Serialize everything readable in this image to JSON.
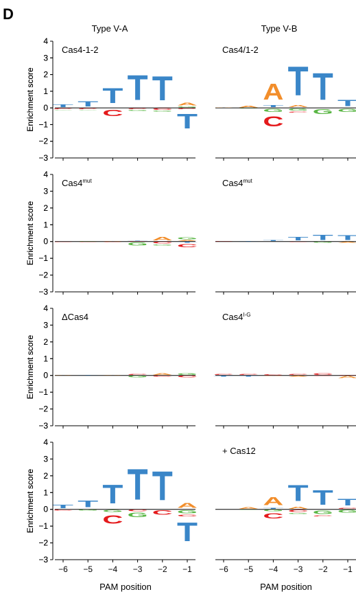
{
  "figure": {
    "panel_letter": "D",
    "column_titles": [
      "Type V-A",
      "Type V-B"
    ],
    "ylabel": "Enrichment score",
    "xlabel": "PAM position",
    "x_ticks": [
      "−6",
      "−5",
      "−4",
      "−3",
      "−2",
      "−1"
    ],
    "y_ticks": [
      "4",
      "3",
      "2",
      "1",
      "0",
      "−1",
      "−2",
      "−3"
    ]
  },
  "colors": {
    "A": "#f28e2b",
    "C": "#e41a1c",
    "G": "#5ab645",
    "T": "#3a86c8"
  },
  "chart_data": [
    {
      "type": "sequence-logo",
      "column": "Type V-A",
      "label": "Cas4-1-2",
      "label_sup": "",
      "ylim": [
        -3,
        4
      ],
      "positions": [
        -6,
        -5,
        -4,
        -3,
        -2,
        -1
      ],
      "stacks": [
        {
          "pos": -6,
          "up": [
            [
              "T",
              0.25
            ]
          ],
          "down": [
            [
              "C",
              0.1
            ],
            [
              "G",
              0.05
            ]
          ]
        },
        {
          "pos": -5,
          "up": [
            [
              "T",
              0.5
            ]
          ],
          "down": [
            [
              "C",
              0.1
            ],
            [
              "G",
              0.05
            ]
          ]
        },
        {
          "pos": -4,
          "up": [
            [
              "T",
              1.45
            ]
          ],
          "down": [
            [
              "C",
              0.6
            ]
          ]
        },
        {
          "pos": -3,
          "up": [
            [
              "T",
              2.4
            ]
          ],
          "down": [
            [
              "C",
              0.1
            ],
            [
              "G",
              0.1
            ]
          ]
        },
        {
          "pos": -2,
          "up": [
            [
              "T",
              2.3
            ]
          ],
          "down": [
            [
              "C",
              0.15
            ],
            [
              "G",
              0.1
            ]
          ]
        },
        {
          "pos": -1,
          "up": [
            [
              "G",
              0.1
            ],
            [
              "A",
              0.25
            ]
          ],
          "down": [
            [
              "C",
              0.1
            ],
            [
              "T",
              1.4
            ]
          ]
        }
      ]
    },
    {
      "type": "sequence-logo",
      "column": "Type V-B",
      "label": "Cas4/1-2",
      "label_sup": "",
      "ylim": [
        -3,
        4
      ],
      "positions": [
        -6,
        -5,
        -4,
        -3,
        -2,
        -1
      ],
      "stacks": [
        {
          "pos": -6,
          "up": [
            [
              "A",
              0.03
            ]
          ],
          "down": []
        },
        {
          "pos": -5,
          "up": [
            [
              "A",
              0.15
            ]
          ],
          "down": [
            [
              "G",
              0.05
            ]
          ]
        },
        {
          "pos": -4,
          "up": [
            [
              "T",
              0.2
            ],
            [
              "A",
              1.55
            ]
          ],
          "down": [
            [
              "G",
              0.3
            ],
            [
              "C",
              1.0
            ]
          ]
        },
        {
          "pos": -3,
          "up": [
            [
              "A",
              0.2
            ],
            [
              "T",
              2.8
            ]
          ],
          "down": [
            [
              "G",
              0.2
            ],
            [
              "C",
              0.1
            ]
          ]
        },
        {
          "pos": -2,
          "up": [
            [
              "T",
              2.55
            ]
          ],
          "down": [
            [
              "G",
              0.45
            ]
          ]
        },
        {
          "pos": -1,
          "up": [
            [
              "T",
              0.6
            ]
          ],
          "down": [
            [
              "G",
              0.3
            ]
          ]
        }
      ]
    },
    {
      "type": "sequence-logo",
      "column": "Type V-A",
      "label": "Cas4",
      "label_sup": "mut",
      "ylim": [
        -3,
        4
      ],
      "positions": [
        -6,
        -5,
        -4,
        -3,
        -2,
        -1
      ],
      "stacks": [
        {
          "pos": -6,
          "up": [
            [
              "T",
              0.02
            ]
          ],
          "down": [
            [
              "C",
              0.05
            ]
          ]
        },
        {
          "pos": -5,
          "up": [
            [
              "G",
              0.05
            ]
          ],
          "down": [
            [
              "C",
              0.05
            ]
          ]
        },
        {
          "pos": -4,
          "up": [
            [
              "A",
              0.05
            ]
          ],
          "down": [
            [
              "C",
              0.03
            ]
          ]
        },
        {
          "pos": -3,
          "up": [
            [
              "C",
              0.05
            ],
            [
              "T",
              0.05
            ]
          ],
          "down": [
            [
              "G",
              0.3
            ]
          ]
        },
        {
          "pos": -2,
          "up": [
            [
              "A",
              0.35
            ]
          ],
          "down": [
            [
              "C",
              0.15
            ],
            [
              "G",
              0.1
            ]
          ]
        },
        {
          "pos": -1,
          "up": [
            [
              "A",
              0.1
            ],
            [
              "G",
              0.2
            ]
          ],
          "down": [
            [
              "T",
              0.1
            ],
            [
              "C",
              0.3
            ]
          ]
        }
      ]
    },
    {
      "type": "sequence-logo",
      "column": "Type V-B",
      "label": "Cas4",
      "label_sup": "mut",
      "ylim": [
        -3,
        4
      ],
      "positions": [
        -6,
        -5,
        -4,
        -3,
        -2,
        -1
      ],
      "stacks": [
        {
          "pos": -6,
          "up": [
            [
              "C",
              0.05
            ]
          ],
          "down": []
        },
        {
          "pos": -5,
          "up": [
            [
              "T",
              0.05
            ]
          ],
          "down": []
        },
        {
          "pos": -4,
          "up": [
            [
              "T",
              0.1
            ]
          ],
          "down": []
        },
        {
          "pos": -3,
          "up": [
            [
              "T",
              0.35
            ]
          ],
          "down": [
            [
              "C",
              0.05
            ]
          ]
        },
        {
          "pos": -2,
          "up": [
            [
              "T",
              0.5
            ]
          ],
          "down": [
            [
              "G",
              0.1
            ]
          ]
        },
        {
          "pos": -1,
          "up": [
            [
              "T",
              0.45
            ]
          ],
          "down": [
            [
              "A",
              0.1
            ]
          ]
        }
      ]
    },
    {
      "type": "sequence-logo",
      "column": "Type V-A",
      "label": "ΔCas4",
      "label_sup": "",
      "ylim": [
        -3,
        4
      ],
      "positions": [
        -6,
        -5,
        -4,
        -3,
        -2,
        -1
      ],
      "stacks": [
        {
          "pos": -6,
          "up": [
            [
              "A",
              0.03
            ]
          ],
          "down": []
        },
        {
          "pos": -5,
          "up": [
            [
              "T",
              0.03
            ]
          ],
          "down": []
        },
        {
          "pos": -4,
          "up": [
            [
              "A",
              0.05
            ]
          ],
          "down": []
        },
        {
          "pos": -3,
          "up": [
            [
              "C",
              0.1
            ]
          ],
          "down": [
            [
              "G",
              0.15
            ]
          ]
        },
        {
          "pos": -2,
          "up": [
            [
              "A",
              0.15
            ]
          ],
          "down": [
            [
              "C",
              0.1
            ]
          ]
        },
        {
          "pos": -1,
          "up": [
            [
              "G",
              0.15
            ]
          ],
          "down": [
            [
              "C",
              0.15
            ]
          ]
        }
      ]
    },
    {
      "type": "sequence-logo",
      "column": "Type V-B",
      "label": "Cas4",
      "label_sup": "I-G",
      "ylim": [
        -3,
        4
      ],
      "positions": [
        -6,
        -5,
        -4,
        -3,
        -2,
        -1
      ],
      "stacks": [
        {
          "pos": -6,
          "up": [
            [
              "C",
              0.1
            ]
          ],
          "down": [
            [
              "T",
              0.1
            ]
          ]
        },
        {
          "pos": -5,
          "up": [
            [
              "C",
              0.1
            ]
          ],
          "down": [
            [
              "T",
              0.1
            ]
          ]
        },
        {
          "pos": -4,
          "up": [
            [
              "C",
              0.08
            ]
          ],
          "down": [
            [
              "A",
              0.05
            ]
          ]
        },
        {
          "pos": -3,
          "up": [
            [
              "C",
              0.1
            ]
          ],
          "down": [
            [
              "A",
              0.1
            ]
          ]
        },
        {
          "pos": -2,
          "up": [
            [
              "C",
              0.15
            ]
          ],
          "down": [
            [
              "C",
              0.05
            ]
          ]
        },
        {
          "pos": -1,
          "up": [
            [
              "C",
              0.05
            ]
          ],
          "down": [
            [
              "A",
              0.2
            ]
          ]
        }
      ]
    },
    {
      "type": "sequence-logo",
      "column": "Type V-A",
      "label": "",
      "label_sup": "",
      "ylim": [
        -3,
        4
      ],
      "positions": [
        -6,
        -5,
        -4,
        -3,
        -2,
        -1
      ],
      "stacks": [
        {
          "pos": -6,
          "up": [
            [
              "T",
              0.35
            ]
          ],
          "down": [
            [
              "C",
              0.1
            ]
          ]
        },
        {
          "pos": -5,
          "up": [
            [
              "T",
              0.65
            ]
          ],
          "down": [
            [
              "G",
              0.1
            ]
          ]
        },
        {
          "pos": -4,
          "up": [
            [
              "T",
              1.8
            ]
          ],
          "down": [
            [
              "G",
              0.2
            ],
            [
              "C",
              0.8
            ]
          ]
        },
        {
          "pos": -3,
          "up": [
            [
              "T",
              2.95
            ]
          ],
          "down": [
            [
              "C",
              0.15
            ],
            [
              "G",
              0.4
            ]
          ]
        },
        {
          "pos": -2,
          "up": [
            [
              "T",
              2.75
            ]
          ],
          "down": [
            [
              "C",
              0.4
            ]
          ]
        },
        {
          "pos": -1,
          "up": [
            [
              "A",
              0.45
            ]
          ],
          "down": [
            [
              "G",
              0.3
            ],
            [
              "C",
              0.15
            ],
            [
              "T",
              1.8
            ]
          ]
        }
      ]
    },
    {
      "type": "sequence-logo",
      "column": "Type V-B",
      "label": "+ Cas12",
      "label_sup": "",
      "ylim": [
        -3,
        4
      ],
      "positions": [
        -6,
        -5,
        -4,
        -3,
        -2,
        -1
      ],
      "stacks": [
        {
          "pos": -6,
          "up": [
            [
              "A",
              0.02
            ]
          ],
          "down": []
        },
        {
          "pos": -5,
          "up": [
            [
              "A",
              0.15
            ]
          ],
          "down": [
            [
              "G",
              0.05
            ]
          ]
        },
        {
          "pos": -4,
          "up": [
            [
              "T",
              0.1
            ],
            [
              "A",
              0.75
            ]
          ],
          "down": [
            [
              "G",
              0.15
            ],
            [
              "C",
              0.5
            ]
          ]
        },
        {
          "pos": -3,
          "up": [
            [
              "A",
              0.2
            ],
            [
              "T",
              1.55
            ]
          ],
          "down": [
            [
              "C",
              0.2
            ],
            [
              "G",
              0.1
            ]
          ]
        },
        {
          "pos": -2,
          "up": [
            [
              "T",
              1.4
            ]
          ],
          "down": [
            [
              "G",
              0.35
            ],
            [
              "C",
              0.1
            ]
          ]
        },
        {
          "pos": -1,
          "up": [
            [
              "C",
              0.1
            ],
            [
              "T",
              0.65
            ]
          ],
          "down": [
            [
              "G",
              0.25
            ]
          ]
        }
      ]
    }
  ]
}
